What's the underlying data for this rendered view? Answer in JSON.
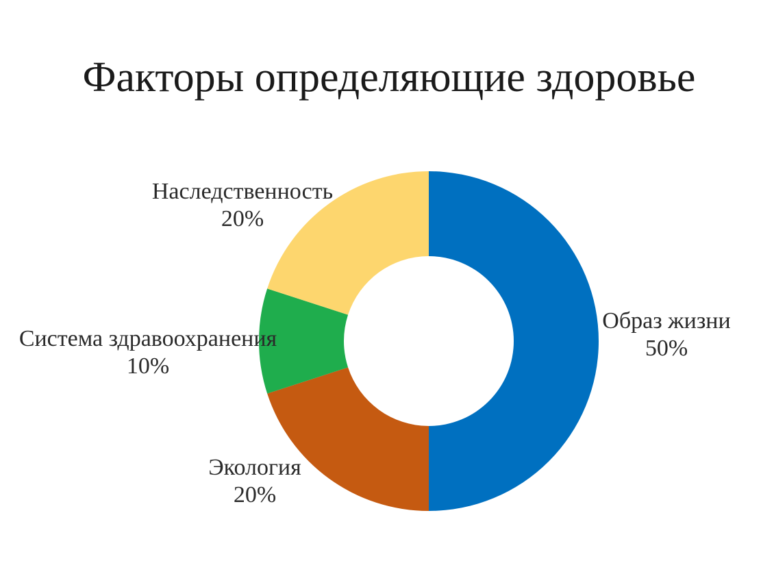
{
  "chart_data": {
    "type": "pie",
    "variant": "donut",
    "title": "Факторы определяющие здоровье",
    "slices": [
      {
        "label": "Образ жизни",
        "value_label": "50%",
        "value": 50,
        "color": "#0070C0"
      },
      {
        "label": "Экология",
        "value_label": "20%",
        "value": 20,
        "color": "#C55A11"
      },
      {
        "label": "Система здравоохранения",
        "value_label": "10%",
        "value": 10,
        "color": "#1FAD4D"
      },
      {
        "label": "Наследственность",
        "value_label": "20%",
        "value": 20,
        "color": "#FDD66E"
      }
    ],
    "legend": "none",
    "direction": "clockwise-from-top"
  }
}
